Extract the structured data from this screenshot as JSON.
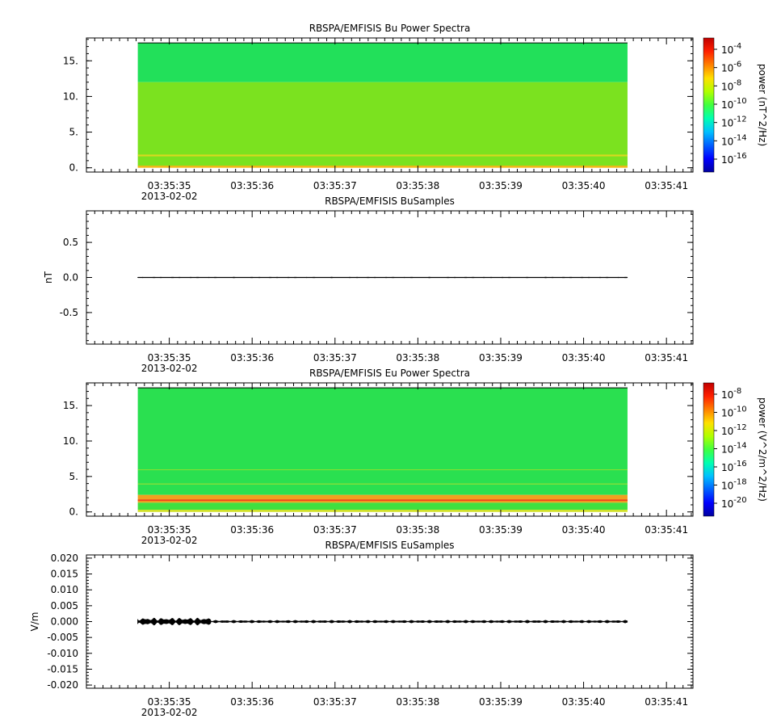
{
  "chart_data": [
    {
      "type": "heatmap",
      "title": "RBSPA/EMFISIS  Bu Power Spectra",
      "ylabel": "",
      "yticks": [
        "0.",
        "5.",
        "10.",
        "15."
      ],
      "ytick_values": [
        0,
        5,
        10,
        15
      ],
      "ylim": [
        -0.6,
        18.2
      ],
      "data_extent_y": [
        0,
        17.5
      ],
      "xticks": [
        "03:35:35",
        "03:35:36",
        "03:35:37",
        "03:35:38",
        "03:35:39",
        "03:35:40",
        "03:35:41"
      ],
      "xdate": "2013-02-02",
      "colorbar": {
        "label": "power (nT^2/Hz)",
        "ticks": [
          {
            "base": "10",
            "exp": "-4"
          },
          {
            "base": "10",
            "exp": "-6"
          },
          {
            "base": "10",
            "exp": "-8"
          },
          {
            "base": "10",
            "exp": "-10"
          },
          {
            "base": "10",
            "exp": "-12"
          },
          {
            "base": "10",
            "exp": "-14"
          },
          {
            "base": "10",
            "exp": "-16"
          }
        ],
        "log": true
      },
      "bands": [
        {
          "y0": 12.0,
          "y1": 17.5,
          "color": "#22e05a"
        },
        {
          "y0": 0.2,
          "y1": 12.0,
          "color": "#7be21f"
        },
        {
          "y0": 1.6,
          "y1": 1.85,
          "color": "#d8d820"
        },
        {
          "y0": 0.0,
          "y1": 0.3,
          "color": "#f0b818"
        }
      ]
    },
    {
      "type": "line",
      "title": "RBSPA/EMFISIS  BuSamples",
      "ylabel": "nT",
      "yticks": [
        "-0.5",
        "0.0",
        "0.5"
      ],
      "ytick_values": [
        -0.5,
        0.0,
        0.5
      ],
      "ylim": [
        -0.95,
        0.95
      ],
      "xticks": [
        "03:35:35",
        "03:35:36",
        "03:35:37",
        "03:35:38",
        "03:35:39",
        "03:35:40",
        "03:35:41"
      ],
      "xdate": "2013-02-02",
      "series_value": 0.0,
      "series_amplitude": 0.005
    },
    {
      "type": "heatmap",
      "title": "RBSPA/EMFISIS  Eu Power Spectra",
      "ylabel": "",
      "yticks": [
        "0.",
        "5.",
        "10.",
        "15."
      ],
      "ytick_values": [
        0,
        5,
        10,
        15
      ],
      "ylim": [
        -0.6,
        18.2
      ],
      "data_extent_y": [
        0,
        17.5
      ],
      "xticks": [
        "03:35:35",
        "03:35:36",
        "03:35:37",
        "03:35:38",
        "03:35:39",
        "03:35:40",
        "03:35:41"
      ],
      "xdate": "2013-02-02",
      "colorbar": {
        "label": "power (V^2/m^2/Hz)",
        "ticks": [
          {
            "base": "10",
            "exp": "-8"
          },
          {
            "base": "10",
            "exp": "-10"
          },
          {
            "base": "10",
            "exp": "-12"
          },
          {
            "base": "10",
            "exp": "-14"
          },
          {
            "base": "10",
            "exp": "-16"
          },
          {
            "base": "10",
            "exp": "-18"
          },
          {
            "base": "10",
            "exp": "-20"
          }
        ],
        "log": true
      },
      "bands": [
        {
          "y0": 2.4,
          "y1": 17.5,
          "color": "#2ae050"
        },
        {
          "y0": 5.9,
          "y1": 6.0,
          "color": "#8ee030"
        },
        {
          "y0": 3.9,
          "y1": 4.0,
          "color": "#a8e030"
        },
        {
          "y0": 1.3,
          "y1": 2.4,
          "color": "#f0a020"
        },
        {
          "y0": 1.55,
          "y1": 1.75,
          "color": "#ee4020"
        },
        {
          "y0": 0.3,
          "y1": 1.3,
          "color": "#40e040"
        },
        {
          "y0": 0.0,
          "y1": 0.3,
          "color": "#d0e020"
        }
      ]
    },
    {
      "type": "line",
      "title": "RBSPA/EMFISIS  EuSamples",
      "ylabel": "V/m",
      "yticks": [
        "-0.020",
        "-0.015",
        "-0.010",
        "-0.005",
        "0.000",
        "0.005",
        "0.010",
        "0.015",
        "0.020"
      ],
      "ytick_values": [
        -0.02,
        -0.015,
        -0.01,
        -0.005,
        0.0,
        0.005,
        0.01,
        0.015,
        0.02
      ],
      "ylim": [
        -0.021,
        0.021
      ],
      "xticks": [
        "03:35:35",
        "03:35:36",
        "03:35:37",
        "03:35:38",
        "03:35:39",
        "03:35:40",
        "03:35:41"
      ],
      "xdate": "2013-02-02",
      "series_value": 0.0,
      "series_amplitude": 0.0003
    }
  ]
}
